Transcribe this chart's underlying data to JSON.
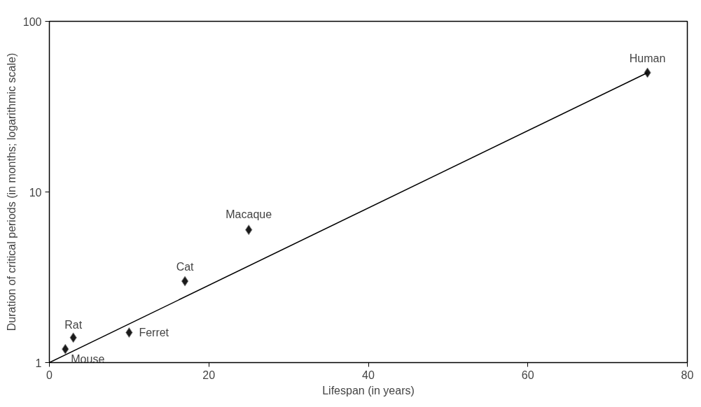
{
  "chart_data": {
    "type": "scatter",
    "xlabel": "Lifespan (in years)",
    "ylabel": "Duration of critical periods (in months; logarithmic scale)",
    "log": "y",
    "xlim": [
      0,
      80
    ],
    "ylim": [
      1,
      100
    ],
    "xticks": [
      0,
      20,
      40,
      60,
      80
    ],
    "yticks": [
      1,
      10,
      100
    ],
    "grid": false,
    "series": [
      {
        "type": "scatter",
        "marker": "diamond",
        "color": "#1a1a1a",
        "x": [
          2,
          3,
          10,
          17,
          25,
          75
        ],
        "values": [
          1.2,
          1.4,
          1.5,
          3,
          6,
          50
        ]
      },
      {
        "type": "line",
        "color": "#000000",
        "x": [
          0,
          75
        ],
        "values": [
          1,
          50
        ]
      }
    ],
    "annotations": [
      {
        "text": "Mouse",
        "x": 2,
        "y": 1.2
      },
      {
        "text": "Rat",
        "x": 3,
        "y": 1.4
      },
      {
        "text": "Ferret",
        "x": 10,
        "y": 1.5
      },
      {
        "text": "Cat",
        "x": 17,
        "y": 3
      },
      {
        "text": "Macaque",
        "x": 25,
        "y": 6
      },
      {
        "text": "Human",
        "x": 75,
        "y": 50
      }
    ]
  }
}
